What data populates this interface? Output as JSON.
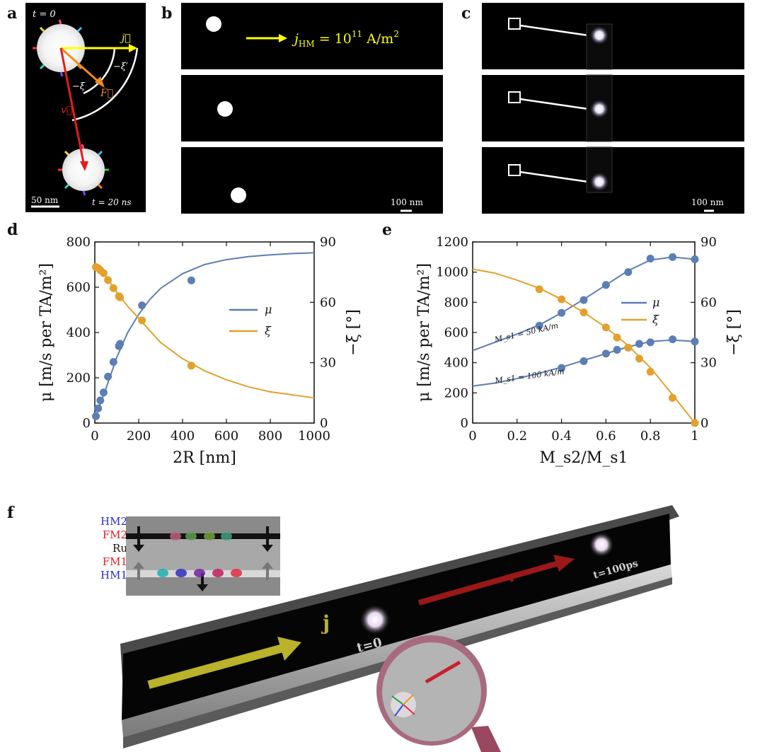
{
  "figure": {
    "panel_labels": {
      "a": "a",
      "b": "b",
      "c": "c",
      "d": "d",
      "e": "e",
      "f": "f"
    },
    "panel_a": {
      "t_start": "t = 0",
      "t_end": "t = 20 ns",
      "scale": "50 nm",
      "vec_j": "j⃗",
      "vec_F": "F⃗",
      "vec_v": "v⃗",
      "angle_xi": "−ξ",
      "angle_xi_prime": "−ξ′",
      "colors": {
        "j": "#ffff00",
        "F": "#f08c1e",
        "v": "#e51c1c"
      }
    },
    "panel_b": {
      "current_label": "j",
      "current_sub": "HM",
      "current_eq": " = 10",
      "current_exp": "11",
      "current_unit": " A/m",
      "current_unit_exp": "2",
      "scale": "100 nm",
      "skyrmion_x_positions": [
        0.12,
        0.17,
        0.22
      ]
    },
    "panel_c": {
      "scale": "100 nm"
    },
    "panel_f": {
      "layers": [
        {
          "name": "HM2",
          "color": "#2a2ae0"
        },
        {
          "name": "FM2",
          "color": "#e02020"
        },
        {
          "name": "Ru",
          "color": "#111111"
        },
        {
          "name": "FM1",
          "color": "#e02020"
        },
        {
          "name": "HM1",
          "color": "#2a2ae0"
        }
      ],
      "track_labels": {
        "j": "j",
        "v": "v",
        "t0": "t=0",
        "t100": "t=100ps"
      }
    }
  },
  "chart_data": [
    {
      "id": "d",
      "type": "scatter",
      "xlabel": "2R [nm]",
      "ylabel": "μ [m/s per TA/m²]",
      "y2label": "−ξ [°]",
      "xlim": [
        0,
        1000
      ],
      "ylim": [
        0,
        800
      ],
      "y2lim": [
        0,
        90
      ],
      "xticks": [
        0,
        200,
        400,
        600,
        800,
        1000
      ],
      "yticks": [
        0,
        200,
        400,
        600,
        800
      ],
      "y2ticks": [
        0,
        30,
        60,
        90
      ],
      "legend_position": "right",
      "series": [
        {
          "name": "μ",
          "color": "#5b7eb5",
          "axis": "left",
          "x": [
            5,
            15,
            25,
            40,
            60,
            85,
            110,
            115,
            215,
            440
          ],
          "y": [
            30,
            65,
            100,
            135,
            205,
            270,
            340,
            350,
            520,
            630
          ],
          "fit_x": [
            0,
            20,
            50,
            100,
            150,
            200,
            250,
            300,
            400,
            500,
            600,
            700,
            800,
            900,
            1000
          ],
          "fit_y": [
            20,
            70,
            150,
            290,
            400,
            480,
            545,
            595,
            660,
            700,
            722,
            735,
            743,
            749,
            752
          ]
        },
        {
          "name": "ξ",
          "color": "#e3a12c",
          "axis": "right",
          "x": [
            5,
            15,
            25,
            40,
            60,
            85,
            110,
            115,
            215,
            440
          ],
          "y": [
            77.5,
            77,
            76,
            74.5,
            71,
            67,
            63,
            62.5,
            51,
            28.5
          ],
          "fit_x": [
            0,
            50,
            100,
            150,
            200,
            300,
            400,
            500,
            600,
            700,
            800,
            900,
            1000
          ],
          "fit_y": [
            78,
            73,
            65,
            58,
            52,
            40,
            32,
            26,
            21.5,
            18,
            15.5,
            14,
            12.5
          ]
        }
      ]
    },
    {
      "id": "e",
      "type": "scatter",
      "xlabel": "M_s2/M_s1",
      "ylabel": "μ [m/s per TA/m²]",
      "y2label": "−ξ [°]",
      "xlim": [
        0,
        1
      ],
      "ylim": [
        0,
        1200
      ],
      "y2lim": [
        0,
        90
      ],
      "xticks": [
        0,
        0.2,
        0.4,
        0.6,
        0.8,
        1
      ],
      "yticks": [
        0,
        200,
        400,
        600,
        800,
        1000,
        1200
      ],
      "y2ticks": [
        0,
        30,
        60,
        90
      ],
      "legend_position": "right",
      "annotations": [
        "M_s1 = 50 kA/m",
        "M_s1 = 100 kA/m"
      ],
      "series": [
        {
          "name": "μ",
          "color": "#5b7eb5",
          "axis": "left",
          "x": [
            0.3,
            0.4,
            0.5,
            0.6,
            0.7,
            0.8,
            0.9,
            1.0
          ],
          "y": [
            645,
            730,
            815,
            915,
            1000,
            1090,
            1100,
            1085
          ],
          "fit_x": [
            0,
            0.1,
            0.2,
            0.3,
            0.4,
            0.5,
            0.6,
            0.7,
            0.8,
            0.9,
            1.0
          ],
          "fit_y": [
            480,
            535,
            590,
            650,
            730,
            820,
            915,
            1010,
            1080,
            1100,
            1085
          ]
        },
        {
          "name": "μ",
          "color": "#5b7eb5",
          "axis": "left",
          "x": [
            0.4,
            0.5,
            0.6,
            0.65,
            0.7,
            0.75,
            0.8,
            0.9,
            1.0
          ],
          "y": [
            365,
            410,
            460,
            485,
            500,
            525,
            535,
            555,
            540
          ],
          "fit_x": [
            0,
            0.1,
            0.2,
            0.3,
            0.4,
            0.5,
            0.6,
            0.7,
            0.8,
            0.9,
            1.0
          ],
          "fit_y": [
            245,
            265,
            295,
            330,
            370,
            415,
            460,
            505,
            540,
            550,
            540
          ]
        },
        {
          "name": "ξ",
          "color": "#e3a12c",
          "axis": "right",
          "x": [
            0.3,
            0.4,
            0.5,
            0.6,
            0.65,
            0.7,
            0.75,
            0.8,
            0.9,
            1.0
          ],
          "y": [
            66.5,
            61.5,
            55,
            47.5,
            42.5,
            37.5,
            32,
            25.5,
            12.5,
            0
          ],
          "fit_x": [
            0,
            0.1,
            0.2,
            0.3,
            0.4,
            0.5,
            0.6,
            0.7,
            0.8,
            0.9,
            1.0
          ],
          "fit_y": [
            76.5,
            74.5,
            71,
            67,
            61.5,
            55,
            47.5,
            38.5,
            27.5,
            14,
            0
          ]
        }
      ]
    }
  ]
}
